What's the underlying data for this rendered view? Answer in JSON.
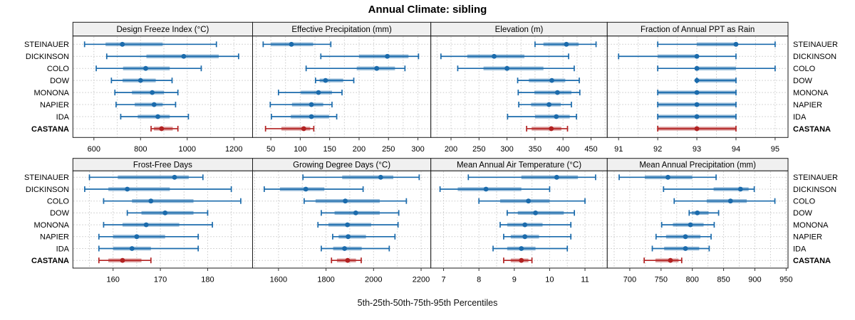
{
  "title": "Annual Climate: sibling",
  "caption": "5th-25th-50th-75th-95th Percentiles",
  "colors": {
    "series": "#1B6BAC",
    "highlight": "#B22222",
    "band_opacity": 0.5,
    "grid": "#C8C8C8",
    "header_bg": "#F0F0F0",
    "border": "#1A1A1A",
    "text": "#000000"
  },
  "chart_data": {
    "type": "interval",
    "note": "Each row shows 5th-25th-50th-75th-95th percentile whisker/band/dot",
    "row_labels": [
      "STEINAUER",
      "DICKINSON",
      "COLO",
      "DOW",
      "MONONA",
      "NAPIER",
      "IDA",
      "CASTANA"
    ],
    "highlight_row": "CASTANA",
    "panels": [
      {
        "title": "Design Freeze Index (°C)",
        "band": 0,
        "col": 0,
        "xlim": [
          510,
          1280
        ],
        "ticks": [
          600,
          800,
          1000,
          1200
        ],
        "grid_step": 100,
        "series": [
          [
            560,
            650,
            722,
            895,
            1125
          ],
          [
            655,
            825,
            985,
            1135,
            1220
          ],
          [
            610,
            725,
            822,
            925,
            1060
          ],
          [
            675,
            723,
            800,
            865,
            935
          ],
          [
            690,
            763,
            850,
            900,
            960
          ],
          [
            695,
            775,
            858,
            895,
            950
          ],
          [
            715,
            788,
            874,
            925,
            1005
          ],
          [
            845,
            857,
            890,
            938,
            960
          ]
        ]
      },
      {
        "title": "Effective Precipitation (mm)",
        "band": 0,
        "col": 1,
        "xlim": [
          19,
          322
        ],
        "ticks": [
          50,
          100,
          150,
          200,
          250,
          300
        ],
        "grid_step": 25,
        "series": [
          [
            37,
            50,
            85,
            122,
            152
          ],
          [
            135,
            200,
            248,
            284,
            301
          ],
          [
            110,
            196,
            230,
            261,
            278
          ],
          [
            126,
            133,
            143,
            173,
            191
          ],
          [
            63,
            101,
            131,
            154,
            171
          ],
          [
            49,
            86,
            119,
            139,
            154
          ],
          [
            51,
            84,
            119,
            149,
            162
          ],
          [
            41,
            68,
            106,
            117,
            123
          ]
        ]
      },
      {
        "title": "Elevation (m)",
        "band": 0,
        "col": 2,
        "xlim": [
          164,
          479
        ],
        "ticks": [
          200,
          250,
          300,
          350,
          400,
          450
        ],
        "grid_step": 25,
        "series": [
          [
            350,
            365,
            406,
            428,
            459
          ],
          [
            182,
            229,
            277,
            331,
            410
          ],
          [
            212,
            258,
            300,
            365,
            420
          ],
          [
            319,
            339,
            380,
            404,
            429
          ],
          [
            320,
            349,
            390,
            415,
            430
          ],
          [
            321,
            343,
            375,
            396,
            415
          ],
          [
            301,
            350,
            388,
            412,
            424
          ],
          [
            335,
            344,
            379,
            397,
            408
          ]
        ]
      },
      {
        "title": "Fraction of Annual PPT as Rain",
        "band": 0,
        "col": 3,
        "xlim": [
          90.71,
          95.33
        ],
        "ticks": [
          91,
          92,
          93,
          94,
          95
        ],
        "grid_step": 0.5,
        "series": [
          [
            92,
            93,
            94,
            94,
            95
          ],
          [
            91,
            92,
            93,
            93,
            94
          ],
          [
            92,
            93,
            93,
            94,
            95
          ],
          [
            93,
            93,
            93,
            94,
            94
          ],
          [
            92,
            92,
            93,
            94,
            94
          ],
          [
            92,
            92,
            93,
            94,
            94
          ],
          [
            92,
            92,
            93,
            94,
            94
          ],
          [
            92,
            92,
            93,
            94,
            94
          ]
        ]
      },
      {
        "title": "Frost-Free Days",
        "band": 1,
        "col": 0,
        "xlim": [
          151.5,
          189.5
        ],
        "ticks": [
          160,
          170,
          180
        ],
        "grid_step": 5,
        "series": [
          [
            155,
            161,
            173,
            176,
            179
          ],
          [
            154,
            159,
            163,
            172,
            185
          ],
          [
            158,
            164,
            168,
            177,
            187
          ],
          [
            163,
            166,
            171,
            177,
            180
          ],
          [
            158,
            162,
            167,
            174,
            181
          ],
          [
            157,
            160,
            165,
            171,
            178
          ],
          [
            157,
            160,
            164,
            168,
            178
          ],
          [
            157,
            159,
            162,
            166,
            168
          ]
        ]
      },
      {
        "title": "Growing Degree Days (°C)",
        "band": 1,
        "col": 1,
        "xlim": [
          1491,
          2241
        ],
        "ticks": [
          1600,
          1800,
          2000,
          2200
        ],
        "grid_step": 100,
        "series": [
          [
            1703,
            1868,
            2030,
            2083,
            2192
          ],
          [
            1540,
            1606,
            1715,
            1793,
            1956
          ],
          [
            1708,
            1756,
            1881,
            2026,
            2138
          ],
          [
            1780,
            1836,
            1925,
            2026,
            2106
          ],
          [
            1766,
            1810,
            1890,
            1990,
            2103
          ],
          [
            1828,
            1853,
            1893,
            1968,
            2090
          ],
          [
            1780,
            1830,
            1878,
            1950,
            2066
          ],
          [
            1823,
            1846,
            1891,
            1926,
            1948
          ]
        ]
      },
      {
        "title": "Mean Annual Air Temperature (°C)",
        "band": 1,
        "col": 2,
        "xlim": [
          6.64,
          11.63
        ],
        "ticks": [
          7,
          8,
          9,
          10,
          11
        ],
        "grid_step": 0.5,
        "series": [
          [
            7.7,
            9.2,
            10.2,
            10.8,
            11.3
          ],
          [
            6.9,
            7.4,
            8.2,
            9.2,
            10.0
          ],
          [
            8.0,
            8.6,
            9.4,
            10.0,
            11.0
          ],
          [
            8.8,
            9.1,
            9.6,
            10.4,
            10.7
          ],
          [
            8.6,
            8.8,
            9.3,
            9.8,
            10.6
          ],
          [
            8.7,
            8.9,
            9.3,
            9.7,
            10.6
          ],
          [
            8.4,
            8.8,
            9.2,
            9.6,
            10.5
          ],
          [
            8.7,
            8.9,
            9.2,
            9.4,
            9.5
          ]
        ]
      },
      {
        "title": "Mean Annual Precipitation (mm)",
        "band": 1,
        "col": 3,
        "xlim": [
          664,
          953
        ],
        "ticks": [
          700,
          750,
          800,
          850,
          900,
          950
        ],
        "grid_step": 25,
        "series": [
          [
            683,
            724,
            761,
            800,
            838
          ],
          [
            754,
            834,
            877,
            890,
            899
          ],
          [
            771,
            823,
            861,
            887,
            932
          ],
          [
            795,
            799,
            808,
            826,
            842
          ],
          [
            751,
            769,
            797,
            818,
            835
          ],
          [
            742,
            758,
            789,
            813,
            830
          ],
          [
            736,
            755,
            789,
            811,
            827
          ],
          [
            723,
            741,
            765,
            778,
            783
          ]
        ]
      }
    ]
  }
}
